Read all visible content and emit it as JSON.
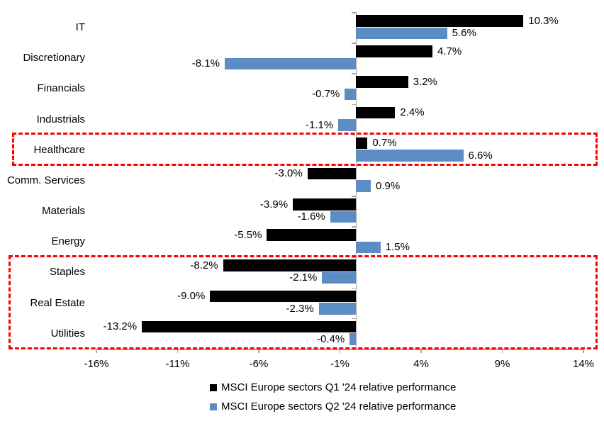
{
  "chart_data": {
    "type": "bar",
    "orientation": "horizontal",
    "title": "",
    "categories": [
      "IT",
      "Discretionary",
      "Financials",
      "Industrials",
      "Healthcare",
      "Comm. Services",
      "Materials",
      "Energy",
      "Staples",
      "Real Estate",
      "Utilities"
    ],
    "series": [
      {
        "name": "MSCI Europe sectors Q1 '24 relative performance",
        "color": "#000000",
        "values": [
          10.3,
          4.7,
          3.2,
          2.4,
          0.7,
          -3.0,
          -3.9,
          -5.5,
          -8.2,
          -9.0,
          -13.2
        ],
        "labels": [
          "10.3%",
          "4.7%",
          "3.2%",
          "2.4%",
          "0.7%",
          "-3.0%",
          "-3.9%",
          "-5.5%",
          "-8.2%",
          "-9.0%",
          "-13.2%"
        ]
      },
      {
        "name": "MSCI Europe sectors Q2 '24 relative performance",
        "color": "#5b8dc4",
        "values": [
          5.6,
          -8.1,
          -0.7,
          -1.1,
          6.6,
          0.9,
          -1.6,
          1.5,
          -2.1,
          -2.3,
          -0.4
        ],
        "labels": [
          "5.6%",
          "-8.1%",
          "-0.7%",
          "-1.1%",
          "6.6%",
          "0.9%",
          "-1.6%",
          "1.5%",
          "-2.1%",
          "-2.3%",
          "-0.4%"
        ]
      }
    ],
    "xlim": [
      -16,
      14
    ],
    "x_ticks": [
      {
        "value": -16,
        "label": "-16%"
      },
      {
        "value": -11,
        "label": "-11%"
      },
      {
        "value": -6,
        "label": "-6%"
      },
      {
        "value": -1,
        "label": "-1%"
      },
      {
        "value": 4,
        "label": "4%"
      },
      {
        "value": 9,
        "label": "9%"
      },
      {
        "value": 14,
        "label": "14%"
      }
    ],
    "grid": false,
    "legend_position": "bottom",
    "axis_color": "#a6a6a6",
    "highlight_color": "#ff0000",
    "highlight_boxes": [
      {
        "rows": [
          4,
          4
        ],
        "sectors": [
          "Healthcare"
        ]
      },
      {
        "rows": [
          8,
          10
        ],
        "sectors": [
          "Staples",
          "Real Estate",
          "Utilities"
        ]
      }
    ]
  }
}
